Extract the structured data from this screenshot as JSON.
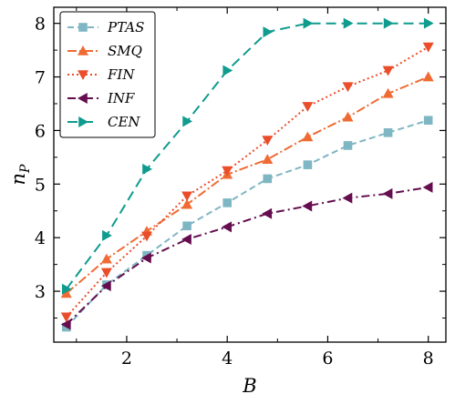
{
  "chart_data": {
    "type": "line",
    "xlabel": "B",
    "ylabel": "n",
    "ylabel_subscript": "P",
    "xlim": [
      0.55,
      8.35
    ],
    "ylim": [
      2.05,
      8.3
    ],
    "xticks": [
      2,
      4,
      6,
      8
    ],
    "yticks": [
      3,
      4,
      5,
      6,
      7,
      8
    ],
    "grid": false,
    "legend_position": "top-left",
    "series": [
      {
        "name": "PTAS",
        "color": "#7fb6c3",
        "marker": "square",
        "dash": "dashed",
        "x": [
          0.8,
          1.6,
          2.4,
          3.2,
          4.0,
          4.8,
          5.6,
          6.4,
          7.2,
          8.0
        ],
        "values": [
          2.33,
          3.12,
          3.67,
          4.22,
          4.65,
          5.1,
          5.36,
          5.72,
          5.96,
          6.19
        ]
      },
      {
        "name": "SMQ",
        "color": "#ef6b33",
        "marker": "triangle-up",
        "dash": "dashdot",
        "x": [
          0.8,
          1.6,
          2.4,
          3.2,
          4.0,
          4.8,
          5.6,
          6.4,
          7.2,
          8.0
        ],
        "values": [
          2.96,
          3.6,
          4.12,
          4.62,
          5.18,
          5.46,
          5.88,
          6.25,
          6.69,
          7.0
        ]
      },
      {
        "name": "FIN",
        "color": "#ea4d2a",
        "marker": "triangle-down",
        "dash": "dotted",
        "x": [
          0.8,
          1.6,
          2.4,
          3.2,
          4.0,
          4.8,
          5.6,
          6.4,
          7.2,
          8.0
        ],
        "values": [
          2.52,
          3.35,
          4.03,
          4.78,
          5.25,
          5.82,
          6.45,
          6.82,
          7.12,
          7.56
        ]
      },
      {
        "name": "INF",
        "color": "#650d4e",
        "marker": "triangle-left",
        "dash": "loosedashdot",
        "x": [
          0.8,
          1.6,
          2.4,
          3.2,
          4.0,
          4.8,
          5.6,
          6.4,
          7.2,
          8.0
        ],
        "values": [
          2.38,
          3.1,
          3.62,
          3.97,
          4.2,
          4.45,
          4.59,
          4.74,
          4.82,
          4.94
        ]
      },
      {
        "name": "CEN",
        "color": "#0f9b8e",
        "marker": "triangle-right",
        "dash": "longdash",
        "x": [
          0.8,
          1.6,
          2.4,
          3.2,
          4.0,
          4.8,
          5.6,
          6.4,
          7.2,
          8.0
        ],
        "values": [
          3.04,
          4.04,
          5.28,
          6.17,
          7.12,
          7.84,
          8.0,
          8.0,
          8.0,
          8.0
        ]
      }
    ]
  }
}
